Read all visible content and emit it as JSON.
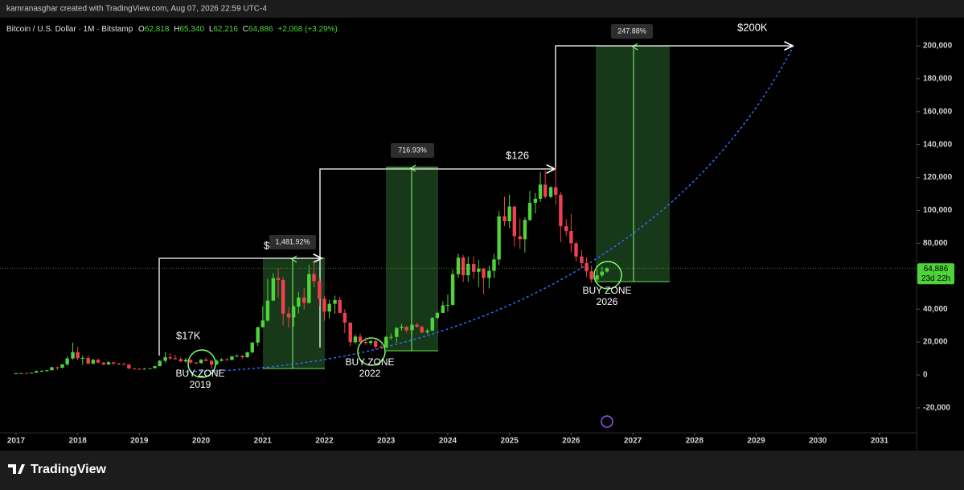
{
  "attribution": "kamranasghar created with TradingView.com, Aug 07, 2026 22:59 UTC-4",
  "brand": "TradingView",
  "chart_data": {
    "type": "candlestick",
    "title": "Bitcoin / U.S. Dollar · 1M · Bitstamp",
    "ohlc": [
      {
        "key": "O",
        "value": "62,818"
      },
      {
        "key": "H",
        "value": "65,340"
      },
      {
        "key": "L",
        "value": "62,216"
      },
      {
        "key": "C",
        "value": "64,886"
      }
    ],
    "change": "+2,068 (+3.29%)",
    "price_tag": {
      "price": "64,886",
      "countdown": "23d 22h"
    },
    "up_color": "#4fd33a",
    "down_color": "#f0404e",
    "xlim": [
      2016.74,
      2031.6
    ],
    "xticks": [
      2017,
      2018,
      2019,
      2020,
      2021,
      2022,
      2023,
      2024,
      2025,
      2026,
      2027,
      2028,
      2029,
      2030,
      2031
    ],
    "ylim": [
      -35200,
      217100
    ],
    "yticks": [
      {
        "value": -20000,
        "label": "-20,000"
      },
      0,
      {
        "value": 20000,
        "label": "20,000"
      },
      {
        "value": 40000,
        "label": "40,000"
      },
      {
        "value": 60000,
        "label": "60,000"
      },
      {
        "value": 80000,
        "label": "80,000"
      },
      {
        "value": 100000,
        "label": "100,000"
      },
      {
        "value": 120000,
        "label": "120,000"
      },
      {
        "value": 140000,
        "label": "140,000"
      },
      {
        "value": 160000,
        "label": "160,000"
      },
      {
        "value": 180000,
        "label": "180,000"
      },
      {
        "value": 200000,
        "label": "200,000"
      }
    ],
    "x": [
      2017,
      2017.08,
      2017.17,
      2017.25,
      2017.33,
      2017.42,
      2017.5,
      2017.58,
      2017.67,
      2017.75,
      2017.83,
      2017.92,
      2018,
      2018.08,
      2018.17,
      2018.25,
      2018.33,
      2018.42,
      2018.5,
      2018.58,
      2018.67,
      2018.75,
      2018.83,
      2018.92,
      2019,
      2019.08,
      2019.17,
      2019.25,
      2019.33,
      2019.42,
      2019.5,
      2019.58,
      2019.67,
      2019.75,
      2019.83,
      2019.92,
      2020,
      2020.08,
      2020.17,
      2020.25,
      2020.33,
      2020.42,
      2020.5,
      2020.58,
      2020.67,
      2020.75,
      2020.83,
      2020.92,
      2021,
      2021.08,
      2021.17,
      2021.25,
      2021.33,
      2021.42,
      2021.5,
      2021.58,
      2021.67,
      2021.75,
      2021.83,
      2021.92,
      2022,
      2022.08,
      2022.17,
      2022.25,
      2022.33,
      2022.42,
      2022.5,
      2022.58,
      2022.67,
      2022.75,
      2022.83,
      2022.92,
      2023,
      2023.08,
      2023.17,
      2023.25,
      2023.33,
      2023.42,
      2023.5,
      2023.58,
      2023.67,
      2023.75,
      2023.83,
      2023.92,
      2024,
      2024.08,
      2024.17,
      2024.25,
      2024.33,
      2024.42,
      2024.5,
      2024.58,
      2024.67,
      2024.75,
      2024.83,
      2024.92,
      2025,
      2025.08,
      2025.17,
      2025.25,
      2025.33,
      2025.42,
      2025.5,
      2025.58,
      2025.67,
      2025.75,
      2025.83,
      2025.92,
      2026,
      2026.08,
      2026.17,
      2026.25,
      2026.33,
      2026.42,
      2026.5,
      2026.58
    ],
    "open": [
      960,
      970,
      1190,
      1080,
      1350,
      2300,
      2480,
      2870,
      4700,
      4340,
      6450,
      10000,
      13900,
      10200,
      10300,
      6900,
      9200,
      7500,
      6400,
      7700,
      7000,
      6600,
      6300,
      4000,
      3700,
      3450,
      3800,
      4100,
      5300,
      8600,
      10800,
      10100,
      9600,
      8300,
      9200,
      7550,
      7200,
      9350,
      8550,
      6400,
      8650,
      9450,
      9140,
      11350,
      11650,
      10780,
      13800,
      19700,
      29000,
      33100,
      45200,
      58800,
      57700,
      37300,
      35000,
      41500,
      47100,
      43800,
      61300,
      57000,
      46300,
      38500,
      43200,
      45500,
      37700,
      31800,
      19900,
      23300,
      20050,
      19400,
      20500,
      17200,
      16550,
      23100,
      23150,
      28500,
      29250,
      27200,
      30450,
      29250,
      25950,
      26950,
      34650,
      37700,
      42300,
      42600,
      61200,
      71300,
      60600,
      67500,
      62700,
      64600,
      58900,
      63300,
      70200,
      96400,
      93400,
      102400,
      84300,
      82500,
      94200,
      104600,
      107100,
      115700,
      108200,
      114000,
      109500,
      90400,
      87500,
      80000,
      72000,
      68000,
      63000,
      58000,
      60500,
      62818
    ],
    "high": [
      1190,
      1200,
      1350,
      1350,
      2760,
      3000,
      2920,
      4770,
      4980,
      6470,
      11400,
      19700,
      17200,
      11800,
      11700,
      9800,
      10000,
      7800,
      8500,
      7800,
      7400,
      7600,
      6600,
      4200,
      4100,
      4200,
      4100,
      5600,
      9100,
      13900,
      13200,
      12300,
      10950,
      10400,
      9500,
      7800,
      9600,
      10500,
      9200,
      9500,
      10100,
      10400,
      11450,
      12500,
      12100,
      14100,
      19900,
      29300,
      41900,
      58400,
      61800,
      64900,
      59600,
      41300,
      42400,
      50500,
      52900,
      67000,
      69000,
      59100,
      47900,
      45800,
      48200,
      47500,
      39900,
      31900,
      24700,
      25200,
      22800,
      21100,
      21500,
      18400,
      23950,
      25200,
      29200,
      30950,
      29800,
      31400,
      31800,
      30000,
      28000,
      35200,
      38400,
      44700,
      48900,
      64000,
      73800,
      72800,
      71900,
      72000,
      70000,
      65100,
      66500,
      73600,
      99600,
      108300,
      109600,
      102500,
      95000,
      95800,
      111900,
      110600,
      123200,
      124400,
      114800,
      126200,
      111200,
      94600,
      97900,
      81000,
      76000,
      71500,
      66500,
      64500,
      65800,
      65340
    ],
    "low": [
      750,
      920,
      890,
      1060,
      1330,
      2100,
      1840,
      2600,
      2970,
      4150,
      5500,
      9400,
      9100,
      6000,
      6400,
      6500,
      7000,
      5800,
      6100,
      5900,
      6100,
      6200,
      3500,
      3200,
      3350,
      3350,
      3700,
      4050,
      5300,
      7500,
      9050,
      9300,
      7700,
      7300,
      6500,
      6400,
      6900,
      8500,
      3850,
      6200,
      8100,
      8950,
      9000,
      10950,
      9900,
      10400,
      13200,
      17600,
      28800,
      32300,
      44900,
      47000,
      30000,
      28800,
      29300,
      37400,
      39600,
      43300,
      53300,
      42000,
      33000,
      34300,
      37200,
      37600,
      25400,
      17600,
      18800,
      19600,
      18150,
      18200,
      15500,
      16300,
      16500,
      21400,
      19600,
      26900,
      25900,
      24800,
      28900,
      25100,
      24900,
      26600,
      34100,
      37600,
      38500,
      41900,
      59100,
      56500,
      56500,
      58400,
      53500,
      49000,
      52600,
      58900,
      66800,
      90500,
      89200,
      78200,
      76600,
      74400,
      93400,
      98200,
      105100,
      107300,
      107300,
      103500,
      80600,
      84400,
      74500,
      69000,
      65000,
      59500,
      56000,
      57200,
      59500,
      62216
    ],
    "close": [
      970,
      1190,
      1080,
      1350,
      2300,
      2480,
      2870,
      4700,
      4340,
      6450,
      10000,
      13900,
      10200,
      10300,
      6900,
      9200,
      7500,
      6400,
      7700,
      7000,
      6600,
      6300,
      4000,
      3700,
      3450,
      3800,
      4100,
      5300,
      8600,
      10800,
      10100,
      9600,
      8300,
      9200,
      7550,
      7200,
      9350,
      8550,
      6400,
      8650,
      9450,
      9140,
      11350,
      11650,
      10780,
      13800,
      19700,
      29000,
      33100,
      45200,
      58800,
      57700,
      37300,
      35000,
      41500,
      47100,
      43800,
      61300,
      57000,
      46300,
      38500,
      43200,
      45500,
      37700,
      31800,
      19900,
      23300,
      20050,
      19400,
      20500,
      17200,
      16550,
      23100,
      23150,
      28500,
      29250,
      27200,
      30450,
      29250,
      25950,
      26950,
      34650,
      37700,
      42300,
      42600,
      61200,
      71300,
      60600,
      67500,
      62700,
      64600,
      58900,
      63300,
      70200,
      96400,
      93400,
      102400,
      84300,
      82500,
      94200,
      104600,
      107100,
      115700,
      108200,
      114000,
      109500,
      90400,
      87500,
      80000,
      72000,
      68000,
      63000,
      58000,
      60500,
      62818,
      64886
    ],
    "annotations": {
      "target_17k": "$17K",
      "dollar": "$",
      "gain_2021": "1,481.92%",
      "gain_2023": "716.93%",
      "target_126": "$126",
      "gain_2027": "247.88%",
      "target_200k": "$200K",
      "buy_zones": [
        {
          "line1": "BUY ZONE",
          "line2": "2019"
        },
        {
          "line1": "BUY ZONE",
          "line2": "2022"
        },
        {
          "line1": "BUY ZONE",
          "line2": "2026"
        }
      ]
    }
  }
}
